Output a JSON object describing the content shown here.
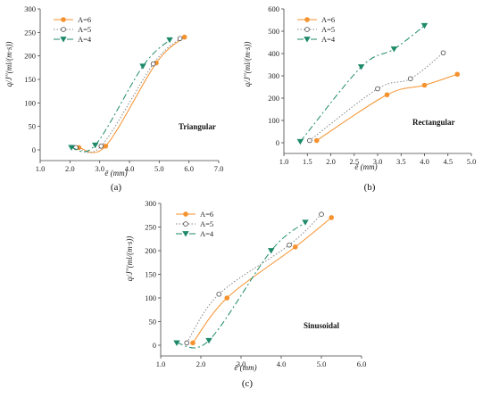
{
  "chart_data": [
    {
      "type": "line",
      "panel_label": "(a)",
      "shape_label": "Triangular",
      "xlabel": "ē  (mm)",
      "ylabel": "q/J′′(ml/(m·s))",
      "xlim": [
        1.0,
        7.0
      ],
      "ylim": [
        0,
        300
      ],
      "xticks": [
        "1.0",
        "2.0",
        "3.0",
        "4.0",
        "5.0",
        "6.0",
        "7.0"
      ],
      "yticks": [
        "0",
        "50",
        "100",
        "150",
        "200",
        "250",
        "300"
      ],
      "legend_position": "top-left",
      "grid": false,
      "series": [
        {
          "name": "A=6",
          "color": "#f5922e",
          "marker": "circle",
          "dash": "solid",
          "x": [
            2.3,
            3.2,
            4.9,
            5.85
          ],
          "y": [
            5,
            8,
            185,
            240
          ]
        },
        {
          "name": "A=5",
          "color": "#888888",
          "marker": "open-circle",
          "dash": "dotted",
          "x": [
            2.2,
            3.05,
            4.8,
            5.7
          ],
          "y": [
            5,
            8,
            183,
            237
          ]
        },
        {
          "name": "A=4",
          "color": "#1f8a6a",
          "marker": "triangle-down",
          "dash": "dashdot",
          "x": [
            2.05,
            2.85,
            4.45,
            5.35
          ],
          "y": [
            5,
            10,
            178,
            234
          ]
        }
      ]
    },
    {
      "type": "line",
      "panel_label": "(b)",
      "shape_label": "Rectangular",
      "xlabel": "ē  (mm)",
      "ylabel": "q/J′′(ml/(m·s))",
      "xlim": [
        1.0,
        5.0
      ],
      "ylim": [
        0,
        600
      ],
      "xticks": [
        "1.0",
        "1.5",
        "2.0",
        "2.5",
        "3.0",
        "3.5",
        "4.0",
        "4.5",
        "5.0"
      ],
      "yticks": [
        "0",
        "100",
        "200",
        "300",
        "400",
        "500",
        "600"
      ],
      "legend_position": "top-left",
      "grid": false,
      "series": [
        {
          "name": "A=6",
          "color": "#f5922e",
          "marker": "circle",
          "dash": "solid",
          "x": [
            1.7,
            3.2,
            4.0,
            4.7
          ],
          "y": [
            10,
            215,
            258,
            307
          ]
        },
        {
          "name": "A=5",
          "color": "#888888",
          "marker": "open-circle",
          "dash": "dotted",
          "x": [
            1.55,
            3.0,
            3.7,
            4.4
          ],
          "y": [
            10,
            242,
            287,
            403
          ]
        },
        {
          "name": "A=4",
          "color": "#1f8a6a",
          "marker": "triangle-down",
          "dash": "dashdot",
          "x": [
            1.35,
            2.65,
            3.35,
            4.0
          ],
          "y": [
            5,
            340,
            420,
            525
          ]
        }
      ]
    },
    {
      "type": "line",
      "panel_label": "(c)",
      "shape_label": "Sinusoidal",
      "xlabel": "ē  (mm)",
      "ylabel": "q/J′′(ml/(m·s))",
      "xlim": [
        1.0,
        6.0
      ],
      "ylim": [
        0,
        300
      ],
      "xticks": [
        "1.0",
        "2.0",
        "3.0",
        "4.0",
        "5.0",
        "6.0"
      ],
      "yticks": [
        "0",
        "50",
        "100",
        "150",
        "200",
        "250",
        "300"
      ],
      "legend_position": "top-left",
      "grid": false,
      "series": [
        {
          "name": "A=6",
          "color": "#f5922e",
          "marker": "circle",
          "dash": "solid",
          "x": [
            1.8,
            2.65,
            4.35,
            5.25
          ],
          "y": [
            5,
            100,
            208,
            270
          ]
        },
        {
          "name": "A=5",
          "color": "#888888",
          "marker": "open-circle",
          "dash": "dotted",
          "x": [
            1.65,
            2.45,
            4.2,
            5.0
          ],
          "y": [
            5,
            108,
            212,
            277
          ]
        },
        {
          "name": "A=4",
          "color": "#1f8a6a",
          "marker": "triangle-down",
          "dash": "dashdot",
          "x": [
            1.4,
            2.2,
            3.75,
            4.6
          ],
          "y": [
            5,
            10,
            200,
            260
          ]
        }
      ]
    }
  ]
}
